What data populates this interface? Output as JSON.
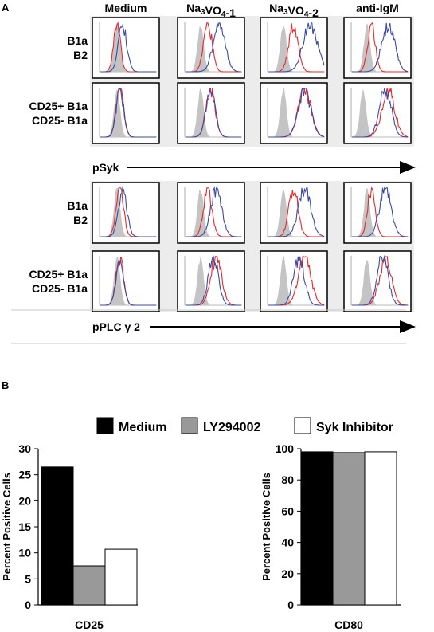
{
  "panel_a": {
    "label": "A",
    "columns": [
      "Medium",
      "Na3VO4-1",
      "Na3VO4-2",
      "anti-IgM"
    ],
    "columns_rich": [
      {
        "parts": [
          {
            "t": "Medium"
          }
        ]
      },
      {
        "parts": [
          {
            "t": "Na"
          },
          {
            "t": "3",
            "sub": true
          },
          {
            "t": "VO"
          },
          {
            "t": "4",
            "sub": true
          },
          {
            "t": "-1"
          }
        ]
      },
      {
        "parts": [
          {
            "t": "Na"
          },
          {
            "t": "3",
            "sub": true
          },
          {
            "t": "VO"
          },
          {
            "t": "4",
            "sub": true
          },
          {
            "t": "-2"
          }
        ]
      },
      {
        "parts": [
          {
            "t": "anti-IgM"
          }
        ]
      }
    ],
    "colors": {
      "blue": "#3a49a3",
      "red": "#e8262a",
      "gray": "#c4c4c4"
    },
    "row_labels": [
      {
        "line1": "B1a",
        "line1_color": "blue",
        "line2": "B2",
        "line2_color": "red"
      },
      {
        "line1": "CD25+ B1a",
        "line1_color": "red",
        "line2": "CD25- B1a",
        "line2_color": "blue"
      },
      {
        "line1": "B1a",
        "line1_color": "blue",
        "line2": "B2",
        "line2_color": "red"
      },
      {
        "line1": "CD25+ B1a",
        "line1_color": "red",
        "line2": "CD25- B1a",
        "line2_color": "blue"
      }
    ],
    "axis_labels": [
      "pSyk",
      "pPLC γ 2"
    ],
    "histograms": [
      [
        {
          "gray": 4.0,
          "red": 4.0,
          "blue": 5.0
        },
        {
          "gray": 3.7,
          "red": 5.0,
          "blue": 7.0
        },
        {
          "gray": 3.7,
          "red": 5.5,
          "blue": 8.5
        },
        {
          "gray": 3.7,
          "red": 4.5,
          "blue": 7.5
        }
      ],
      [
        {
          "gray": 4.0,
          "red": 4.5,
          "blue": 4.5
        },
        {
          "gray": 3.7,
          "red": 5.5,
          "blue": 5.5
        },
        {
          "gray": 3.7,
          "red": 7.5,
          "blue": 7.5
        },
        {
          "gray": 3.0,
          "red": 7.5,
          "blue": 7.0
        }
      ],
      [
        {
          "gray": 4.0,
          "red": 4.5,
          "blue": 5.0
        },
        {
          "gray": 3.7,
          "red": 5.0,
          "blue": 6.5
        },
        {
          "gray": 3.7,
          "red": 5.5,
          "blue": 7.5
        },
        {
          "gray": 3.7,
          "red": 4.5,
          "blue": 7.0
        }
      ],
      [
        {
          "gray": 4.0,
          "red": 4.5,
          "blue": 4.5
        },
        {
          "gray": 3.7,
          "red": 6.5,
          "blue": 6.0
        },
        {
          "gray": 3.7,
          "red": 7.5,
          "blue": 6.5
        },
        {
          "gray": 3.7,
          "red": 7.0,
          "blue": 6.5
        }
      ]
    ]
  },
  "panel_b": {
    "label": "B",
    "legend": [
      {
        "name": "Medium",
        "color": "#000000"
      },
      {
        "name": "LY294002",
        "color": "#999999"
      },
      {
        "name": "Syk Inhibitor",
        "color": "#ffffff"
      }
    ]
  },
  "chart_data": [
    {
      "type": "bar",
      "title": "",
      "xlabel": "CD25",
      "ylabel": "Percent Positive Cells",
      "ylim": [
        0,
        30
      ],
      "yticks": [
        "0",
        "5",
        "10",
        "15",
        "20",
        "25",
        "30"
      ],
      "series": [
        {
          "name": "Medium",
          "values": [
            26.5
          ]
        },
        {
          "name": "LY294002",
          "values": [
            7.5
          ]
        },
        {
          "name": "Syk Inhibitor",
          "values": [
            10.7
          ]
        }
      ]
    },
    {
      "type": "bar",
      "title": "",
      "xlabel": "CD80",
      "ylabel": "Percent Positive Cells",
      "ylim": [
        0,
        100
      ],
      "yticks": [
        "0",
        "20",
        "40",
        "60",
        "80",
        "100"
      ],
      "series": [
        {
          "name": "Medium",
          "values": [
            98
          ]
        },
        {
          "name": "LY294002",
          "values": [
            97.5
          ]
        },
        {
          "name": "Syk Inhibitor",
          "values": [
            98
          ]
        }
      ]
    }
  ]
}
